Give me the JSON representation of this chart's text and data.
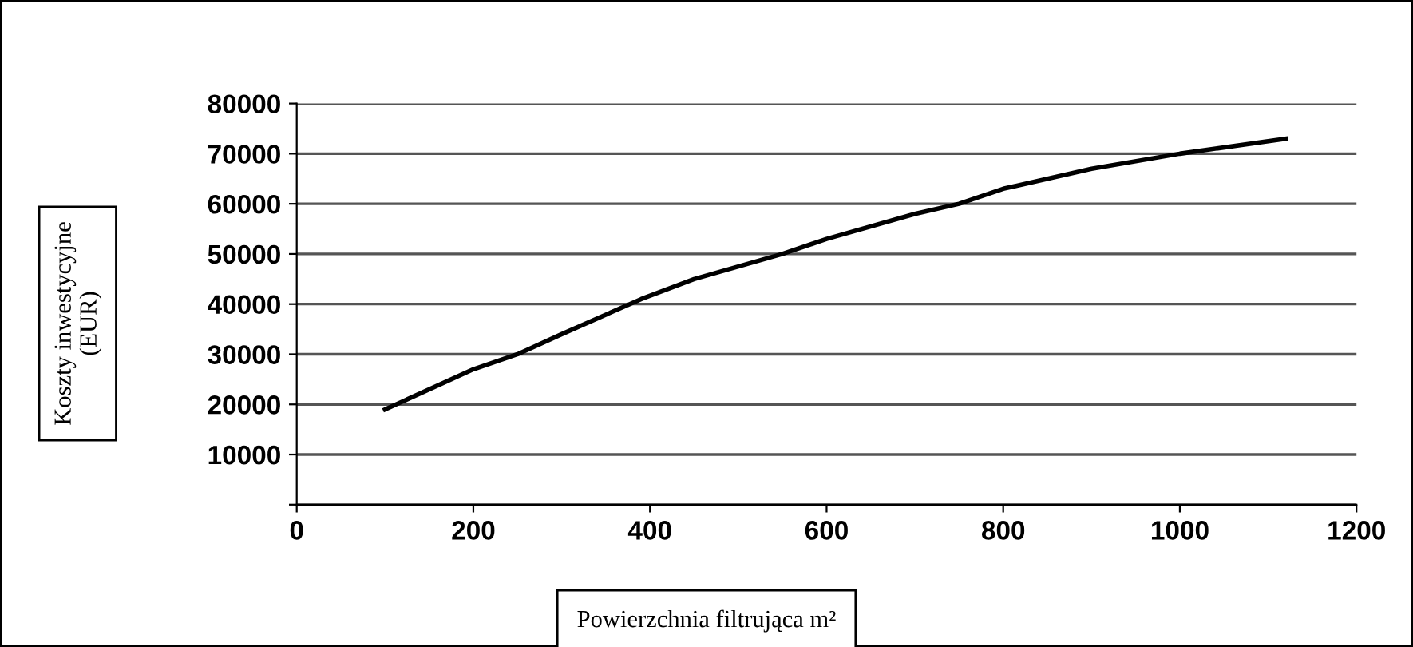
{
  "chart_data": {
    "type": "line",
    "xlabel": "Powierzchnia filtrująca m²",
    "ylabel": "Koszty inwestycyjne\n(EUR)",
    "x": [
      100,
      200,
      250,
      300,
      390,
      450,
      550,
      600,
      700,
      750,
      800,
      900,
      1000,
      1120
    ],
    "series": [
      {
        "color": "#000000",
        "values": [
          19000,
          27000,
          30000,
          34000,
          41000,
          45000,
          50000,
          53000,
          58000,
          60000,
          63000,
          67000,
          70000,
          73000
        ]
      }
    ],
    "xlim": [
      0,
      1200
    ],
    "xticks": [
      0,
      200,
      400,
      600,
      800,
      1000,
      1200
    ],
    "ylim": [
      0,
      80000
    ],
    "yticks": [
      {
        "value": 0,
        "label": null
      },
      10000,
      20000,
      30000,
      40000,
      50000,
      60000,
      70000,
      80000
    ],
    "grid": "y",
    "marker": "none",
    "line_style": "solid"
  }
}
